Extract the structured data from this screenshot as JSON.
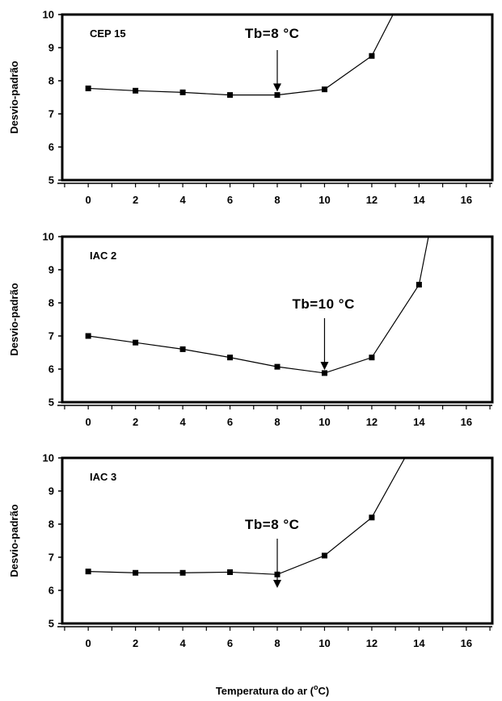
{
  "chart_data": [
    {
      "type": "line",
      "panel_label": "CEP 15",
      "ylabel": "Desvio-padrão",
      "xlim": [
        -1.1,
        17.1
      ],
      "ylim": [
        5,
        10
      ],
      "xticks": [
        0,
        2,
        4,
        6,
        8,
        10,
        12,
        14,
        16
      ],
      "yticks": [
        5,
        6,
        7,
        8,
        9,
        10
      ],
      "x": [
        0,
        2,
        4,
        6,
        8,
        10,
        12
      ],
      "y": [
        7.77,
        7.7,
        7.65,
        7.57,
        7.57,
        7.74,
        8.75
      ],
      "line_extension": {
        "x": 12.9,
        "y": 10.0
      },
      "annotation": {
        "text": "Tb=8 °C",
        "x": 8,
        "arrow_tip_y": 7.6
      },
      "grid": false
    },
    {
      "type": "line",
      "panel_label": "IAC 2",
      "ylabel": "Desvio-padrão",
      "xlim": [
        -1.1,
        17.1
      ],
      "ylim": [
        5,
        10
      ],
      "xticks": [
        0,
        2,
        4,
        6,
        8,
        10,
        12,
        14,
        16
      ],
      "yticks": [
        5,
        6,
        7,
        8,
        9,
        10
      ],
      "x": [
        0,
        2,
        4,
        6,
        8,
        10,
        12,
        14
      ],
      "y": [
        7.0,
        6.8,
        6.6,
        6.35,
        6.07,
        5.88,
        6.35,
        8.55
      ],
      "line_extension": {
        "x": 14.4,
        "y": 10.0
      },
      "annotation": {
        "text": "Tb=10 °C",
        "x": 10,
        "arrow_tip_y": 5.9
      },
      "grid": false
    },
    {
      "type": "line",
      "panel_label": "IAC 3",
      "ylabel": "Desvio-padrão",
      "xlim": [
        -1.1,
        17.1
      ],
      "ylim": [
        5,
        10
      ],
      "xticks": [
        0,
        2,
        4,
        6,
        8,
        10,
        12,
        14,
        16
      ],
      "yticks": [
        5,
        6,
        7,
        8,
        9,
        10
      ],
      "x": [
        0,
        2,
        4,
        6,
        8,
        10,
        12
      ],
      "y": [
        6.57,
        6.53,
        6.53,
        6.55,
        6.48,
        7.05,
        8.2
      ],
      "line_extension": {
        "x": 13.4,
        "y": 10.0
      },
      "annotation": {
        "text": "Tb=8 °C",
        "x": 8,
        "arrow_tip_y": 6.0
      },
      "grid": false
    }
  ],
  "xlabel": {
    "prefix": "Temperatura do ar (",
    "superscript": "o",
    "suffix": "C)"
  }
}
